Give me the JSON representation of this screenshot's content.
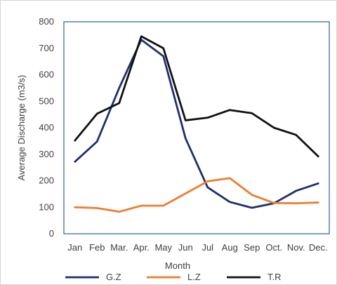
{
  "chart_data": {
    "type": "line",
    "title": "",
    "xlabel": "Month",
    "ylabel": "Average Discharge (m3/s)",
    "categories": [
      "Jan",
      "Feb",
      "Mar.",
      "Apr.",
      "May",
      "Jun",
      "Jul",
      "Aug",
      "Sep",
      "Oct.",
      "Nov.",
      "Dec."
    ],
    "ylim": [
      0,
      800
    ],
    "yticks": [
      "0",
      "100",
      "200",
      "300",
      "400",
      "500",
      "600",
      "700",
      "800"
    ],
    "grid": false,
    "legend_position": "bottom",
    "series": [
      {
        "name": "G.Z",
        "color": "#1f2f6e",
        "values": [
          272,
          348,
          550,
          732,
          670,
          360,
          175,
          120,
          98,
          115,
          162,
          190
        ]
      },
      {
        "name": "L.Z",
        "color": "#ed7d31",
        "values": [
          100,
          97,
          83,
          106,
          106,
          152,
          198,
          210,
          147,
          116,
          115,
          118
        ]
      },
      {
        "name": "T.R",
        "color": "#111111",
        "values": [
          352,
          453,
          493,
          745,
          700,
          428,
          438,
          467,
          455,
          400,
          373,
          292
        ]
      }
    ],
    "plot_area_border_color": "#2e5da8"
  }
}
